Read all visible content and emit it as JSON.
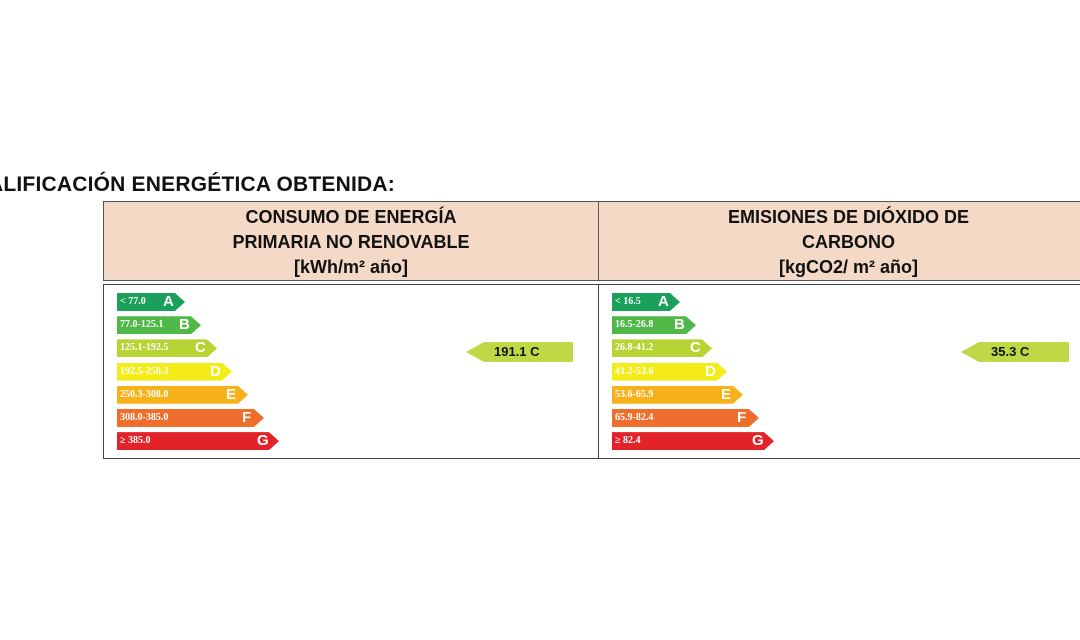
{
  "title": "ALIFICACIÓN ENERGÉTICA OBTENIDA:",
  "energy": {
    "header_line1": "CONSUMO DE ENERGÍA",
    "header_line2": "PRIMARIA NO RENOVABLE",
    "header_unit": "[kWh/m² año]",
    "rating_value": "191.1 C",
    "rating_letter": "C",
    "bands": [
      {
        "range": "< 77.0",
        "letter": "A",
        "color": "#1aa05a"
      },
      {
        "range": "77.0-125.1",
        "letter": "B",
        "color": "#50b848"
      },
      {
        "range": "125.1-192.5",
        "letter": "C",
        "color": "#b6d433"
      },
      {
        "range": "192.5-250.3",
        "letter": "D",
        "color": "#f3ec19"
      },
      {
        "range": "250.3-308.0",
        "letter": "E",
        "color": "#f7b21b"
      },
      {
        "range": "308.0-385.0",
        "letter": "F",
        "color": "#ee6f2d"
      },
      {
        "range": "≥ 385.0",
        "letter": "G",
        "color": "#e3232a"
      }
    ]
  },
  "co2": {
    "header_line1": "EMISIONES DE DIÓXIDO DE",
    "header_line2": "CARBONO",
    "header_unit": "[kgCO2/ m² año]",
    "rating_value": "35.3 C",
    "rating_letter": "C",
    "bands": [
      {
        "range": "< 16.5",
        "letter": "A",
        "color": "#1aa05a"
      },
      {
        "range": "16.5-26.8",
        "letter": "B",
        "color": "#50b848"
      },
      {
        "range": "26.8-41.2",
        "letter": "C",
        "color": "#b6d433"
      },
      {
        "range": "41.2-53.6",
        "letter": "D",
        "color": "#f3ec19"
      },
      {
        "range": "53.6-65.9",
        "letter": "E",
        "color": "#f7b21b"
      },
      {
        "range": "65.9-82.4",
        "letter": "F",
        "color": "#ee6f2d"
      },
      {
        "range": "≥ 82.4",
        "letter": "G",
        "color": "#e3232a"
      }
    ]
  }
}
